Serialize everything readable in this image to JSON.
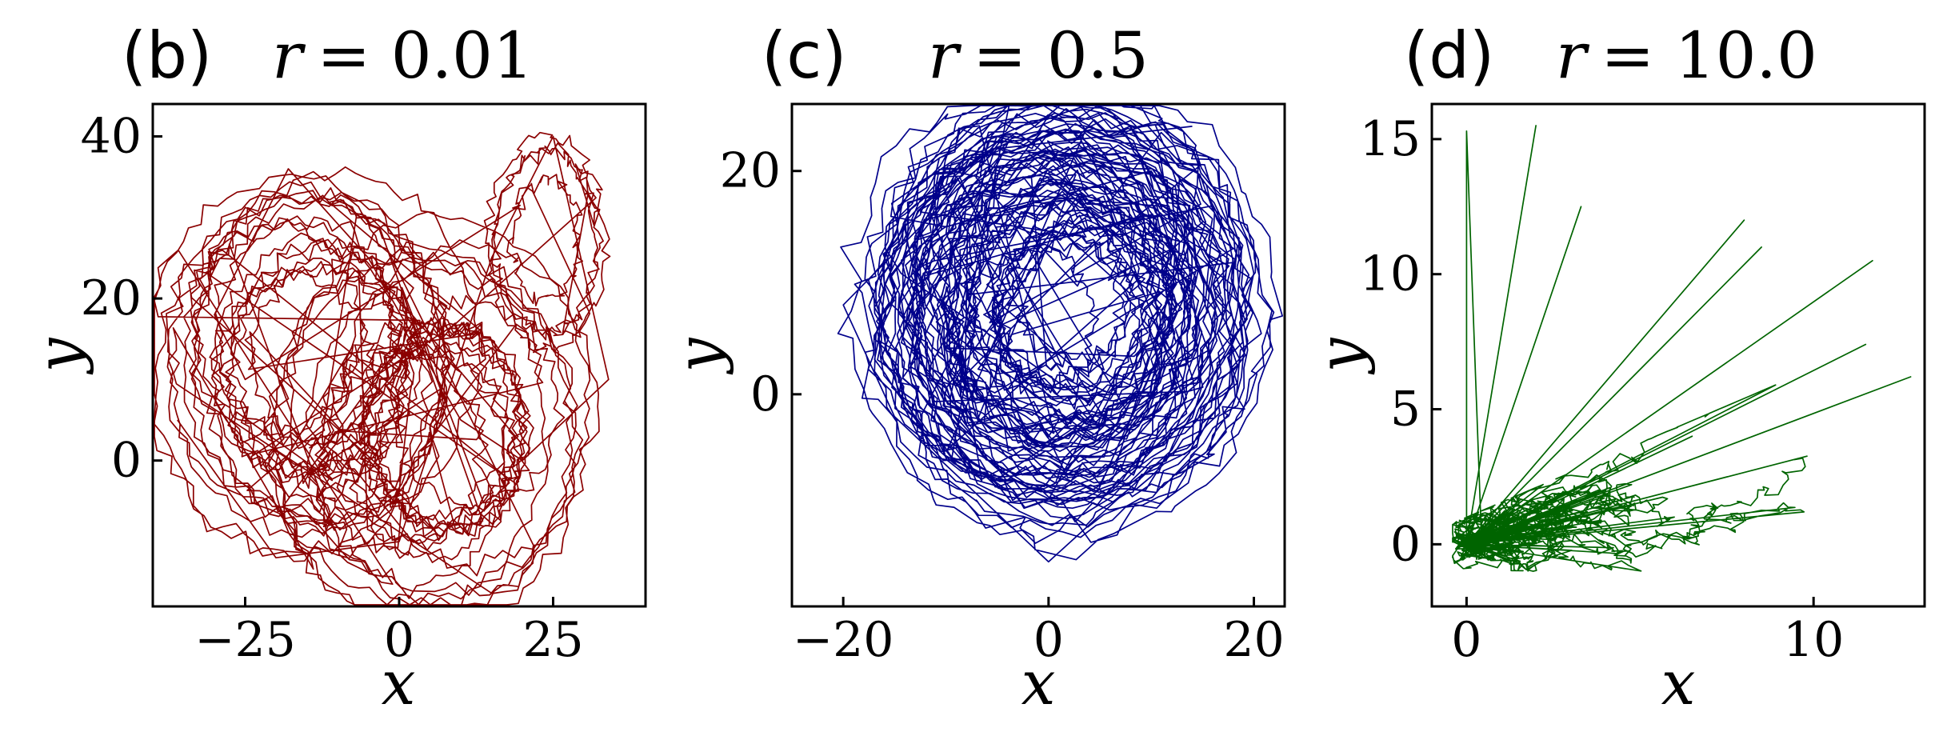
{
  "chart_data": [
    {
      "type": "line",
      "panel_label": "(b)",
      "title": "r = 0.01",
      "title_var": "r",
      "title_value": "= 0.01",
      "xlabel": "x",
      "ylabel": "y",
      "xlim": [
        -40,
        40
      ],
      "ylim": [
        -18,
        44
      ],
      "xticks": [
        -25,
        0,
        25
      ],
      "xtick_labels": [
        "−25",
        "0",
        "25"
      ],
      "yticks": [
        0,
        20,
        40
      ],
      "ytick_labels": [
        "0",
        "20",
        "40"
      ],
      "color": "#8b0000",
      "series": [
        {
          "kind": "random-walk trajectory, two lobes",
          "x_range": [
            -37,
            36
          ],
          "y_range": [
            -15,
            41
          ],
          "lobe_centers": [
            [
              -13,
              12
            ],
            [
              6,
              4
            ]
          ],
          "secondary_lobe": [
            [
              24,
              27
            ]
          ],
          "sample_points": [
            [
              -25,
              10
            ],
            [
              -30,
              18
            ],
            [
              -18,
              36
            ],
            [
              -5,
              25
            ],
            [
              10,
              5
            ],
            [
              20,
              0
            ],
            [
              34,
              10
            ],
            [
              25,
              40
            ],
            [
              15,
              25
            ],
            [
              0,
              -10
            ],
            [
              -20,
              -12
            ],
            [
              -36,
              5
            ]
          ]
        }
      ]
    },
    {
      "type": "line",
      "panel_label": "(c)",
      "title": "r = 0.5",
      "title_var": "r",
      "title_value": "= 0.5",
      "xlabel": "x",
      "ylabel": "y",
      "xlim": [
        -25,
        23
      ],
      "ylim": [
        -19,
        26
      ],
      "xticks": [
        -20,
        0,
        20
      ],
      "xtick_labels": [
        "−20",
        "0",
        "20"
      ],
      "yticks": [
        0,
        20
      ],
      "ytick_labels": [
        "0",
        "20"
      ],
      "color": "#00008b",
      "series": [
        {
          "kind": "random-walk trajectory, single dense disc",
          "x_range": [
            -22,
            20
          ],
          "y_range": [
            -17,
            24
          ],
          "center": [
            1,
            8
          ],
          "sample_points": [
            [
              -10,
              15
            ],
            [
              10,
              20
            ],
            [
              18,
              5
            ],
            [
              12,
              -5
            ],
            [
              0,
              -15
            ],
            [
              -15,
              -2
            ],
            [
              -20,
              8
            ],
            [
              -5,
              22
            ],
            [
              14,
              24
            ]
          ]
        }
      ]
    },
    {
      "type": "line",
      "panel_label": "(d)",
      "title": "r = 10.0",
      "title_var": "r",
      "title_value": "= 10.0",
      "xlabel": "x",
      "ylabel": "y",
      "xlim": [
        -1,
        13.2
      ],
      "ylim": [
        -2.3,
        16.3
      ],
      "xticks": [
        0,
        10
      ],
      "xtick_labels": [
        "0",
        "10"
      ],
      "yticks": [
        0,
        5,
        10,
        15
      ],
      "ytick_labels": [
        "0",
        "5",
        "10",
        "15"
      ],
      "color": "#006400",
      "series": [
        {
          "kind": "trajectory with resets to origin",
          "x_range": [
            0,
            12.8
          ],
          "y_range": [
            -1,
            15.5
          ],
          "reset_point": [
            0,
            0
          ],
          "sample_points": [
            [
              0,
              15.3
            ],
            [
              2,
              15.5
            ],
            [
              8,
              12
            ],
            [
              8.5,
              11
            ],
            [
              12.8,
              6.2
            ],
            [
              11.7,
              10.5
            ],
            [
              11.5,
              7.4
            ],
            [
              3.3,
              12.5
            ],
            [
              6.5,
              4
            ],
            [
              4,
              2
            ]
          ]
        }
      ]
    }
  ]
}
